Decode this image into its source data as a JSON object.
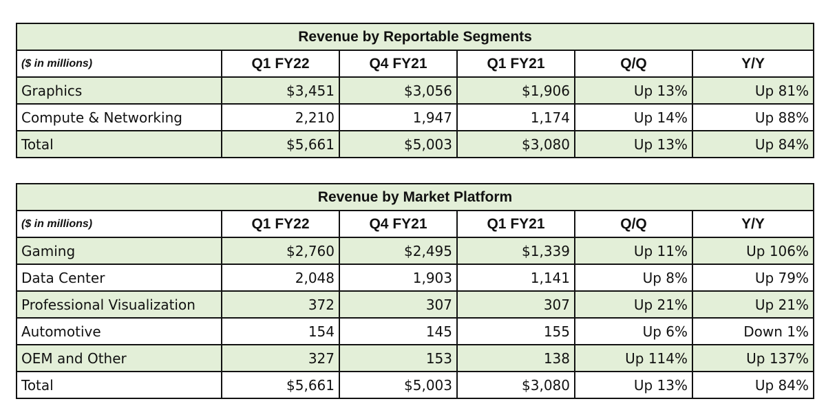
{
  "chart_data": [
    {
      "type": "table",
      "title": "Revenue by Reportable Segments",
      "unit_label": "($ in millions)",
      "columns": [
        "Q1 FY22",
        "Q4 FY21",
        "Q1 FY21",
        "Q/Q",
        "Y/Y"
      ],
      "rows": [
        {
          "label": "Graphics",
          "cells": [
            "$3,451",
            "$3,056",
            "$1,906",
            "Up 13%",
            "Up 81%"
          ]
        },
        {
          "label": "Compute & Networking",
          "cells": [
            "2,210",
            "1,947",
            "1,174",
            "Up 14%",
            "Up 88%"
          ]
        },
        {
          "label": "Total",
          "cells": [
            "$5,661",
            "$5,003",
            "$3,080",
            "Up 13%",
            "Up 84%"
          ]
        }
      ]
    },
    {
      "type": "table",
      "title": "Revenue by Market Platform",
      "unit_label": "($ in millions)",
      "columns": [
        "Q1 FY22",
        "Q4 FY21",
        "Q1 FY21",
        "Q/Q",
        "Y/Y"
      ],
      "rows": [
        {
          "label": "Gaming",
          "cells": [
            "$2,760",
            "$2,495",
            "$1,339",
            "Up 11%",
            "Up 106%"
          ]
        },
        {
          "label": "Data Center",
          "cells": [
            "2,048",
            "1,903",
            "1,141",
            "Up 8%",
            "Up 79%"
          ]
        },
        {
          "label": "Professional Visualization",
          "cells": [
            "372",
            "307",
            "307",
            "Up 21%",
            "Up 21%"
          ]
        },
        {
          "label": "Automotive",
          "cells": [
            "154",
            "145",
            "155",
            "Up 6%",
            "Down 1%"
          ]
        },
        {
          "label": "OEM and Other",
          "cells": [
            "327",
            "153",
            "138",
            "Up 114%",
            "Up 137%"
          ]
        },
        {
          "label": "Total",
          "cells": [
            "$5,661",
            "$5,003",
            "$3,080",
            "Up 13%",
            "Up 84%"
          ]
        }
      ]
    }
  ],
  "colors": {
    "band": "#e3efd8",
    "border": "#111111"
  }
}
